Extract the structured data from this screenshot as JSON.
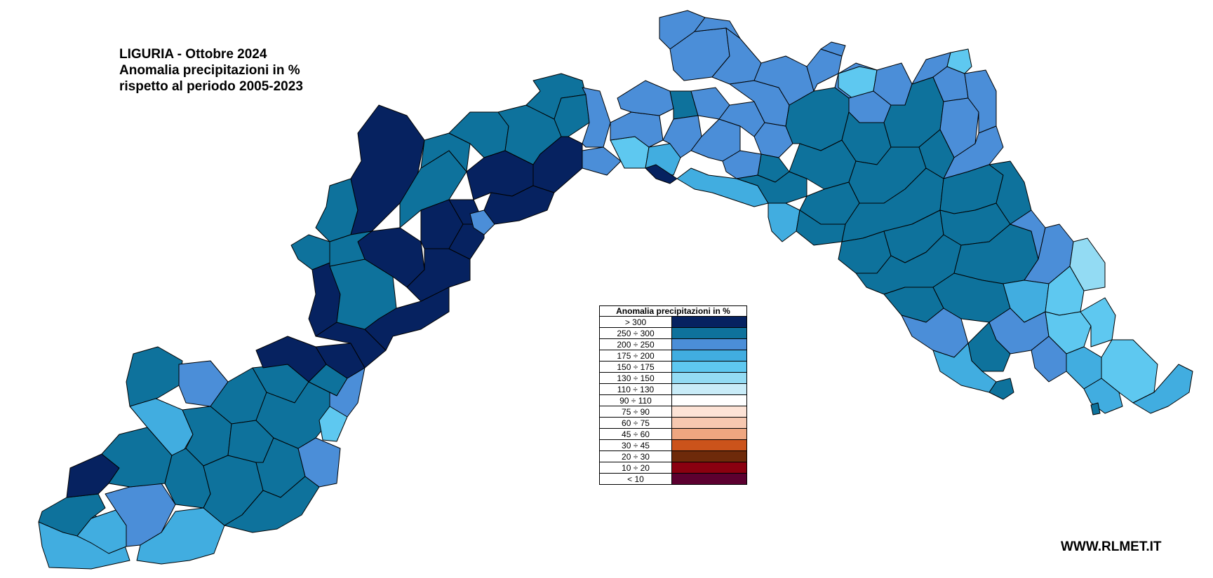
{
  "title": {
    "line1": "LIGURIA - Ottobre 2024",
    "line2": "Anomalia precipitazioni in %",
    "line3": "rispetto al periodo 2005-2023"
  },
  "legend": {
    "header": "Anomalia precipitazioni in %",
    "classes": [
      {
        "label": "> 300",
        "color": "#062260"
      },
      {
        "label": "250 ÷ 300",
        "color": "#0e729c"
      },
      {
        "label": "200 ÷ 250",
        "color": "#4b8ed8"
      },
      {
        "label": "175 ÷ 200",
        "color": "#41ade0"
      },
      {
        "label": "150 ÷ 175",
        "color": "#5ec8f0"
      },
      {
        "label": "130 ÷ 150",
        "color": "#93dbf3"
      },
      {
        "label": "110 ÷ 130",
        "color": "#c9ecf8"
      },
      {
        "label": "90 ÷ 110",
        "color": "#ffffff"
      },
      {
        "label": "75 ÷ 90",
        "color": "#fde3d6"
      },
      {
        "label": "60 ÷ 75",
        "color": "#f7c8b0"
      },
      {
        "label": "45 ÷ 60",
        "color": "#eea680"
      },
      {
        "label": "30 ÷ 45",
        "color": "#cb531b"
      },
      {
        "label": "20 ÷ 30",
        "color": "#6e2a0a"
      },
      {
        "label": "10 ÷ 20",
        "color": "#8a0010"
      },
      {
        "label": "< 10",
        "color": "#5c0030"
      }
    ]
  },
  "watermark": "WWW.RLMET.IT"
}
